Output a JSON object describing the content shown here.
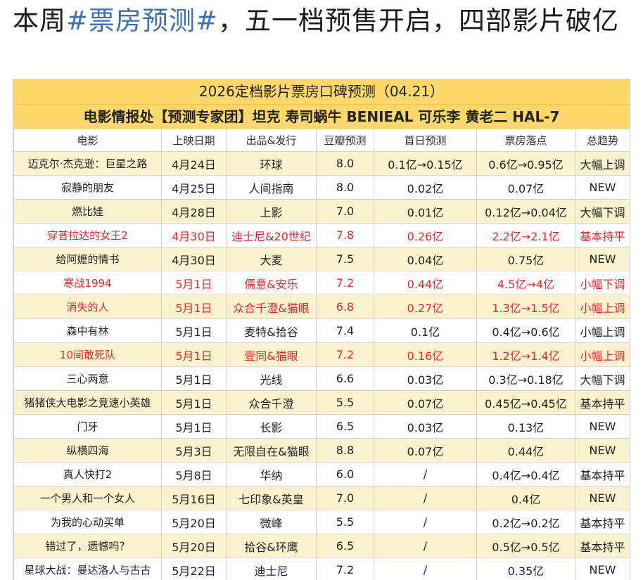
{
  "post": {
    "title_pre": "本周",
    "hashtag": "#票房预测#",
    "title_post": "，五一档预售开启，四部影片破亿"
  },
  "table_header": {
    "line1": "2026定档影片票房口碑预测（04.21）",
    "line2": "电影情报处【预测专家团】坦克 寿司蜗牛 BENIEAL 可乐李 黄老二 HAL-7"
  },
  "columns": [
    "电影",
    "上映日期",
    "出品&发行",
    "豆瓣预测",
    "首日预测",
    "票房落点",
    "总趋势"
  ],
  "colors": {
    "header_yellow": "#fcd96a",
    "alt_row": "#fdf2cf",
    "highlight_red": "#e8262b",
    "hashtag_blue": "#3a6fb0"
  },
  "rows": [
    {
      "movie": "迈克尔·杰克逊：巨星之路",
      "date": "4月24日",
      "studio": "环球",
      "douban": "8.0",
      "first_day": "0.1亿→0.15亿",
      "box_office": "0.6亿→0.95亿",
      "trend": "大幅上调",
      "alt": true,
      "red": false
    },
    {
      "movie": "寂静的朋友",
      "date": "4月25日",
      "studio": "人间指南",
      "douban": "8.0",
      "first_day": "0.02亿",
      "box_office": "0.07亿",
      "trend": "NEW",
      "alt": false,
      "red": false
    },
    {
      "movie": "燃比娃",
      "date": "4月28日",
      "studio": "上影",
      "douban": "7.0",
      "first_day": "0.01亿",
      "box_office": "0.12亿→0.04亿",
      "trend": "大幅下调",
      "alt": true,
      "red": false
    },
    {
      "movie": "穿普拉达的女王2",
      "date": "4月30日",
      "studio": "迪士尼&20世纪",
      "douban": "7.8",
      "first_day": "0.26亿",
      "box_office": "2.2亿→2.1亿",
      "trend": "基本持平",
      "alt": false,
      "red": true
    },
    {
      "movie": "给阿嬷的情书",
      "date": "4月30日",
      "studio": "大麦",
      "douban": "7.5",
      "first_day": "0.04亿",
      "box_office": "0.75亿",
      "trend": "NEW",
      "alt": true,
      "red": false
    },
    {
      "movie": "寒战1994",
      "date": "5月1日",
      "studio": "儒意&安乐",
      "douban": "7.2",
      "first_day": "0.44亿",
      "box_office": "4.5亿→4亿",
      "trend": "小幅下调",
      "alt": false,
      "red": true
    },
    {
      "movie": "消失的人",
      "date": "5月1日",
      "studio": "众合千澄&猫眼",
      "douban": "6.8",
      "first_day": "0.27亿",
      "box_office": "1.3亿→1.5亿",
      "trend": "小幅上调",
      "alt": true,
      "red": true
    },
    {
      "movie": "森中有林",
      "date": "5月1日",
      "studio": "麦特&拾谷",
      "douban": "7.4",
      "first_day": "0.1亿",
      "box_office": "0.4亿→0.6亿",
      "trend": "小幅上调",
      "alt": false,
      "red": false
    },
    {
      "movie": "10间敢死队",
      "date": "5月1日",
      "studio": "壹同&猫眼",
      "douban": "7.2",
      "first_day": "0.16亿",
      "box_office": "1.2亿→1.4亿",
      "trend": "小幅上调",
      "alt": true,
      "red": true
    },
    {
      "movie": "三心两意",
      "date": "5月1日",
      "studio": "光线",
      "douban": "6.6",
      "first_day": "0.03亿",
      "box_office": "0.3亿→0.18亿",
      "trend": "大幅下调",
      "alt": false,
      "red": false
    },
    {
      "movie": "猪猪侠大电影之竞速小英雄",
      "date": "5月1日",
      "studio": "众合千澄",
      "douban": "5.5",
      "first_day": "0.07亿",
      "box_office": "0.45亿→0.45亿",
      "trend": "基本持平",
      "alt": true,
      "red": false
    },
    {
      "movie": "门牙",
      "date": "5月1日",
      "studio": "长影",
      "douban": "6.5",
      "first_day": "0.03亿",
      "box_office": "0.13亿",
      "trend": "NEW",
      "alt": false,
      "red": false
    },
    {
      "movie": "纵横四海",
      "date": "5月3日",
      "studio": "无限自在&猫眼",
      "douban": "8.8",
      "first_day": "0.07亿",
      "box_office": "0.44亿",
      "trend": "NEW",
      "alt": true,
      "red": false
    },
    {
      "movie": "真人快打2",
      "date": "5月8日",
      "studio": "华纳",
      "douban": "6.0",
      "first_day": "/",
      "box_office": "0.4亿→0.4亿",
      "trend": "基本持平",
      "alt": false,
      "red": false
    },
    {
      "movie": "一个男人和一个女人",
      "date": "5月16日",
      "studio": "七印象&英皇",
      "douban": "7.0",
      "first_day": "/",
      "box_office": "0.4亿",
      "trend": "NEW",
      "alt": true,
      "red": false
    },
    {
      "movie": "为我的心动买单",
      "date": "5月20日",
      "studio": "微峰",
      "douban": "5.5",
      "first_day": "/",
      "box_office": "0.2亿→0.2亿",
      "trend": "基本持平",
      "alt": false,
      "red": false
    },
    {
      "movie": "错过了，遗憾吗？",
      "date": "5月20日",
      "studio": "拾谷&环鹰",
      "douban": "6.5",
      "first_day": "/",
      "box_office": "0.5亿→0.5亿",
      "trend": "基本持平",
      "alt": true,
      "red": false
    },
    {
      "movie": "星球大战：曼达洛人与古古",
      "date": "5月22日",
      "studio": "迪士尼",
      "douban": "7.2",
      "first_day": "/",
      "box_office": "0.35亿",
      "trend": "NEW",
      "alt": false,
      "red": false
    }
  ]
}
